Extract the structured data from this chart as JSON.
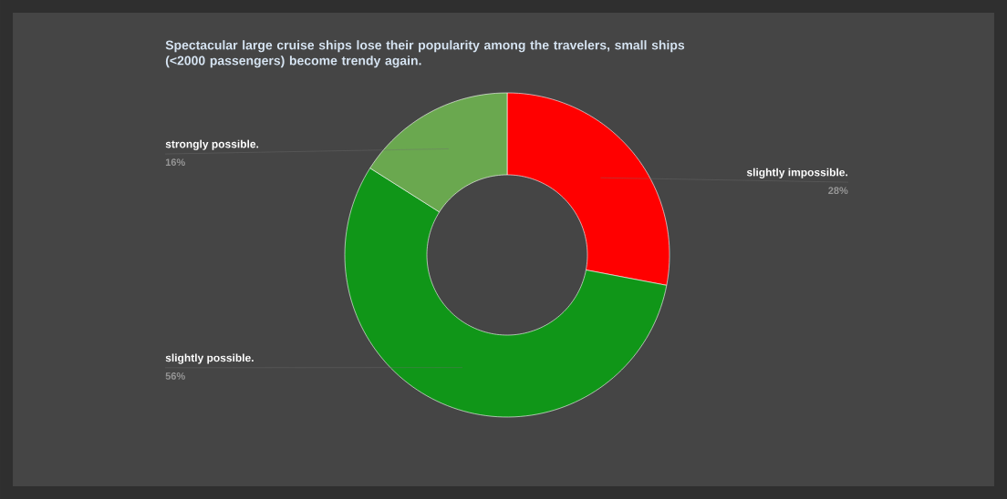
{
  "chart_data": {
    "type": "donut",
    "title": "Spectacular large cruise ships lose their popularity among the travelers, small  ships (<2000 passengers) become trendy again.",
    "categories": [
      "slightly impossible.",
      "slightly possible.",
      "strongly possible."
    ],
    "values": [
      28,
      56,
      16
    ],
    "colors": [
      "#ff0000",
      "#109618",
      "#6aa84f"
    ],
    "value_labels": [
      "28%",
      "56%",
      "16%"
    ]
  }
}
